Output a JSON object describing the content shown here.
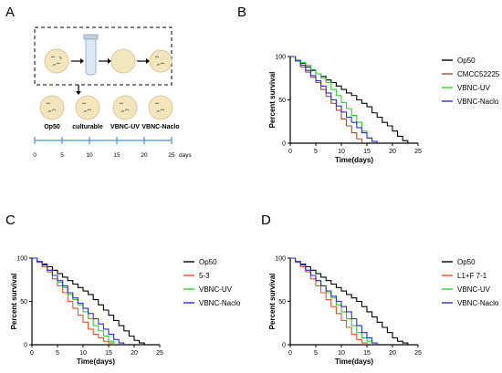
{
  "panels": {
    "A": {
      "label": "A",
      "dishes": [
        "Op50",
        "culturable",
        "VBNC-UV",
        "VBNC-Naclo"
      ],
      "timeline_ticks": [
        "0",
        "5",
        "10",
        "15",
        "20",
        "25"
      ],
      "timeline_unit": "days"
    }
  },
  "chart_data": [
    {
      "id": "B",
      "panel_label": "B",
      "type": "line",
      "step": true,
      "xlabel": "Time(days)",
      "ylabel": "Percent survival",
      "xlim": [
        0,
        25
      ],
      "ylim": [
        0,
        100
      ],
      "xticks": [
        0,
        5,
        10,
        15,
        20,
        25
      ],
      "yticks": [
        0,
        50,
        100
      ],
      "legend_position": "right",
      "series": [
        {
          "name": "Op50",
          "color": "#000000",
          "x": [
            0,
            1,
            2,
            3,
            4,
            5,
            6,
            7,
            8,
            9,
            10,
            11,
            12,
            13,
            14,
            15,
            16,
            17,
            18,
            19,
            20,
            21,
            22,
            23
          ],
          "y": [
            100,
            95,
            92,
            88,
            84,
            80,
            77,
            73,
            70,
            66,
            62,
            58,
            55,
            50,
            46,
            42,
            35,
            30,
            24,
            20,
            14,
            8,
            3,
            0
          ]
        },
        {
          "name": "CMCC52225",
          "color": "#a0522d",
          "x": [
            0,
            1,
            2,
            3,
            4,
            5,
            6,
            7,
            8,
            9,
            10,
            11,
            12,
            13,
            14
          ],
          "y": [
            100,
            95,
            88,
            82,
            76,
            70,
            62,
            54,
            46,
            38,
            28,
            20,
            12,
            5,
            0
          ]
        },
        {
          "name": "VBNC-UV",
          "color": "#33cc33",
          "x": [
            0,
            1,
            2,
            3,
            4,
            5,
            6,
            7,
            8,
            9,
            10,
            11,
            12,
            13,
            14,
            15,
            16
          ],
          "y": [
            100,
            96,
            93,
            90,
            85,
            80,
            75,
            70,
            62,
            55,
            47,
            40,
            32,
            24,
            14,
            6,
            0
          ]
        },
        {
          "name": "VBNC-Naclo",
          "color": "#2b2bd6",
          "x": [
            0,
            1,
            2,
            3,
            4,
            5,
            6,
            7,
            8,
            9,
            10,
            11,
            12,
            13,
            14,
            15,
            16,
            17
          ],
          "y": [
            100,
            95,
            90,
            84,
            78,
            72,
            66,
            58,
            50,
            43,
            36,
            30,
            24,
            18,
            12,
            6,
            2,
            0
          ]
        }
      ]
    },
    {
      "id": "C",
      "panel_label": "C",
      "type": "line",
      "step": true,
      "xlabel": "Time(days)",
      "ylabel": "Percent survival",
      "xlim": [
        0,
        25
      ],
      "ylim": [
        0,
        100
      ],
      "xticks": [
        0,
        5,
        10,
        15,
        20,
        25
      ],
      "yticks": [
        0,
        50,
        100
      ],
      "legend_position": "right",
      "series": [
        {
          "name": "Op50",
          "color": "#000000",
          "x": [
            0,
            1,
            2,
            3,
            4,
            5,
            6,
            7,
            8,
            9,
            10,
            11,
            12,
            13,
            14,
            15,
            16,
            17,
            18,
            19,
            20,
            21,
            22
          ],
          "y": [
            100,
            96,
            93,
            90,
            86,
            82,
            78,
            74,
            70,
            66,
            62,
            58,
            52,
            46,
            40,
            34,
            28,
            22,
            16,
            10,
            5,
            2,
            0
          ]
        },
        {
          "name": "5-3",
          "color": "#e8542a",
          "x": [
            0,
            1,
            2,
            3,
            4,
            5,
            6,
            7,
            8,
            9,
            10,
            11,
            12,
            13,
            14,
            15,
            16
          ],
          "y": [
            100,
            95,
            90,
            84,
            76,
            68,
            60,
            50,
            42,
            34,
            26,
            18,
            12,
            8,
            4,
            2,
            0
          ]
        },
        {
          "name": "VBNC-UV",
          "color": "#33cc33",
          "x": [
            0,
            1,
            2,
            3,
            4,
            5,
            6,
            7,
            8,
            9,
            10,
            11,
            12,
            13,
            14,
            15,
            16
          ],
          "y": [
            100,
            96,
            92,
            86,
            80,
            72,
            66,
            58,
            52,
            46,
            38,
            30,
            22,
            16,
            10,
            4,
            0
          ]
        },
        {
          "name": "VBNC-Naclo",
          "color": "#2b2bd6",
          "x": [
            0,
            1,
            2,
            3,
            4,
            5,
            6,
            7,
            8,
            9,
            10,
            11,
            12,
            13,
            14,
            15,
            16,
            17,
            18
          ],
          "y": [
            100,
            96,
            92,
            86,
            80,
            74,
            68,
            60,
            54,
            48,
            42,
            36,
            30,
            24,
            18,
            12,
            6,
            2,
            0
          ]
        }
      ]
    },
    {
      "id": "D",
      "panel_label": "D",
      "type": "line",
      "step": true,
      "xlabel": "Time(days)",
      "ylabel": "Percent survival",
      "xlim": [
        0,
        25
      ],
      "ylim": [
        0,
        100
      ],
      "xticks": [
        0,
        5,
        10,
        15,
        20,
        25
      ],
      "yticks": [
        0,
        50,
        100
      ],
      "legend_position": "right",
      "series": [
        {
          "name": "Op50",
          "color": "#000000",
          "x": [
            0,
            1,
            2,
            3,
            4,
            5,
            6,
            7,
            8,
            9,
            10,
            11,
            12,
            13,
            14,
            15,
            16,
            17,
            18,
            19,
            20,
            21,
            22,
            23
          ],
          "y": [
            100,
            96,
            93,
            90,
            86,
            82,
            78,
            74,
            70,
            66,
            62,
            58,
            54,
            50,
            44,
            38,
            32,
            26,
            20,
            14,
            8,
            4,
            2,
            0
          ]
        },
        {
          "name": "L1+F 7-1",
          "color": "#e8542a",
          "x": [
            0,
            1,
            2,
            3,
            4,
            5,
            6,
            7,
            8,
            9,
            10,
            11,
            12,
            13,
            14,
            15
          ],
          "y": [
            100,
            95,
            90,
            84,
            76,
            68,
            60,
            52,
            44,
            36,
            28,
            20,
            12,
            6,
            2,
            0
          ]
        },
        {
          "name": "VBNC-UV",
          "color": "#33cc33",
          "x": [
            0,
            1,
            2,
            3,
            4,
            5,
            6,
            7,
            8,
            9,
            10,
            11,
            12,
            13,
            14,
            15,
            16
          ],
          "y": [
            100,
            96,
            92,
            86,
            80,
            74,
            68,
            60,
            54,
            46,
            38,
            30,
            22,
            14,
            8,
            4,
            0
          ]
        },
        {
          "name": "VBNC-Naclo",
          "color": "#2b2bd6",
          "x": [
            0,
            1,
            2,
            3,
            4,
            5,
            6,
            7,
            8,
            9,
            10,
            11,
            12,
            13,
            14,
            15,
            16,
            17
          ],
          "y": [
            100,
            96,
            92,
            86,
            80,
            74,
            68,
            62,
            56,
            50,
            44,
            38,
            30,
            22,
            14,
            8,
            2,
            0
          ]
        }
      ]
    }
  ]
}
